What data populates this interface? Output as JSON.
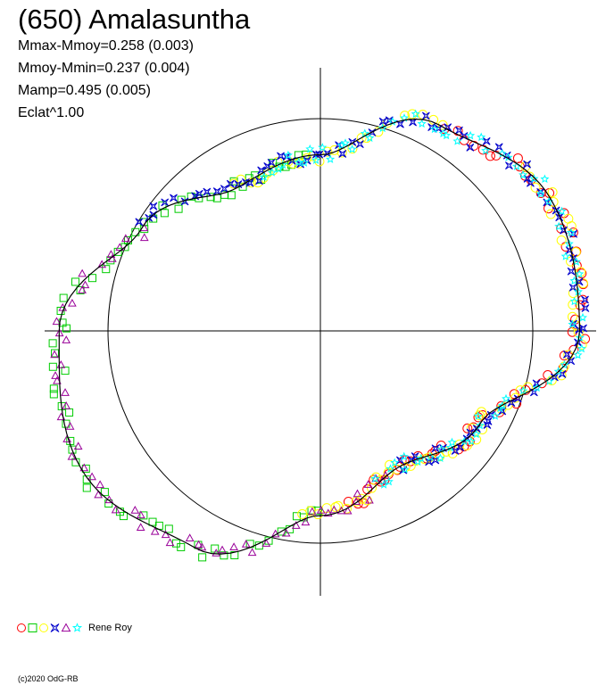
{
  "header": {
    "title": "(650) Amalasuntha",
    "stats": [
      "Mmax-Mmoy=0.258 (0.003)",
      "Mmoy-Mmin=0.237 (0.004)",
      "Mamp=0.495 (0.005)",
      "Eclat^1.00"
    ]
  },
  "legend": {
    "label": "Rene Roy",
    "markers": [
      {
        "shape": "circle",
        "color": "#ff0000"
      },
      {
        "shape": "square",
        "color": "#00cc00"
      },
      {
        "shape": "circle",
        "color": "#ffff00"
      },
      {
        "shape": "bowtie",
        "color": "#0000cc"
      },
      {
        "shape": "triangle",
        "color": "#990099"
      },
      {
        "shape": "star",
        "color": "#00ffff"
      }
    ]
  },
  "footer": {
    "copyright": "(c)2020 OdG-RB"
  },
  "chart_data": {
    "type": "scatter",
    "projection": "polar",
    "description_axes": "amplitude-phase polar lightcurve plot",
    "reference_circle_radius": 1.0,
    "shape_radius_profile": {
      "angle_deg": [
        0,
        30,
        60,
        90,
        120,
        150,
        180,
        210,
        240,
        270,
        300,
        330,
        360
      ],
      "radius": [
        1.22,
        1.25,
        1.12,
        0.83,
        0.78,
        0.97,
        1.23,
        1.3,
        1.18,
        0.87,
        0.74,
        0.87,
        1.22
      ]
    },
    "series_colors": [
      "#ff0000",
      "#00cc00",
      "#ffff00",
      "#0000cc",
      "#990099",
      "#00ffff"
    ],
    "grid": false
  }
}
